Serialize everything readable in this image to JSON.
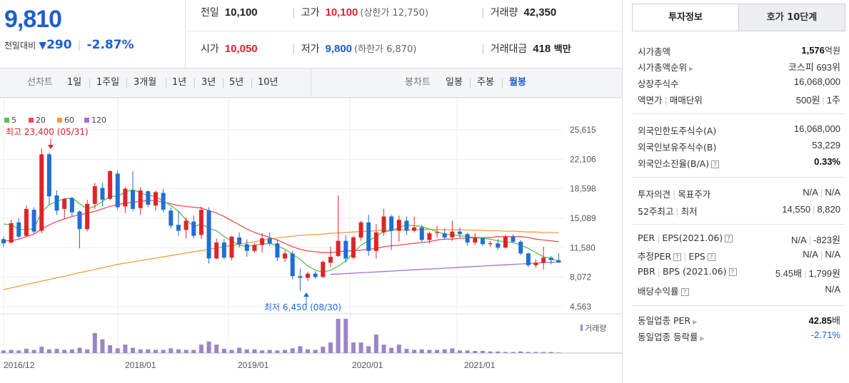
{
  "summary": {
    "current_price": "9,810",
    "change_label": "전일대비",
    "change_arrow": "▼",
    "change_value": "290",
    "change_rate": "-2.87%"
  },
  "quotes": {
    "prev_close": {
      "label": "전일",
      "value": "10,100"
    },
    "high": {
      "label": "고가",
      "value": "10,100",
      "sub": "(상한가 12,750)"
    },
    "volume": {
      "label": "거래량",
      "value": "42,350"
    },
    "open": {
      "label": "시가",
      "value": "10,050"
    },
    "low": {
      "label": "저가",
      "value": "9,800",
      "sub": "(하한가 6,870)"
    },
    "amount": {
      "label": "거래대금",
      "value": "418",
      "unit": "백만"
    }
  },
  "period_bar": {
    "line_label": "선차트",
    "line_options": [
      "1일",
      "1주일",
      "3개월",
      "1년",
      "3년",
      "5년",
      "10년"
    ],
    "candle_label": "봉차트",
    "candle_options": [
      "일봉",
      "주봉",
      "월봉"
    ],
    "candle_active": "월봉"
  },
  "chart_data": {
    "type": "candlestick",
    "interval": "monthly",
    "legend": [
      {
        "name": "5",
        "color": "#59c24b"
      },
      {
        "name": "20",
        "color": "#e94f52"
      },
      {
        "name": "60",
        "color": "#f59b3c"
      },
      {
        "name": "120",
        "color": "#a46fd6"
      }
    ],
    "y_ticks": [
      "25,615",
      "22,106",
      "18,598",
      "15,089",
      "11,580",
      "8,072",
      "4,563"
    ],
    "ylim": [
      4563,
      25615
    ],
    "x_ticks": [
      "2016/12",
      "2018/01",
      "2019/01",
      "2020/01",
      "2021/01"
    ],
    "high_annotation": "최고 23,400 (05/31)",
    "low_annotation": "최저 6,450 (08/30)",
    "volume_label": "거래량",
    "candles": [
      [
        12600,
        12900,
        11650,
        12100
      ],
      [
        12200,
        14900,
        12100,
        14500
      ],
      [
        14600,
        15100,
        12700,
        12900
      ],
      [
        13000,
        16600,
        12900,
        16200
      ],
      [
        16100,
        16400,
        13300,
        13500
      ],
      [
        13600,
        23400,
        13300,
        22700
      ],
      [
        22700,
        22900,
        16700,
        17700
      ],
      [
        17800,
        18400,
        15500,
        16000
      ],
      [
        16200,
        17500,
        15000,
        17400
      ],
      [
        17500,
        17600,
        15300,
        15800
      ],
      [
        15900,
        16000,
        11500,
        13800
      ],
      [
        13800,
        17300,
        13500,
        16800
      ],
      [
        16800,
        19300,
        16200,
        18900
      ],
      [
        18700,
        19300,
        16500,
        17300
      ],
      [
        17400,
        20800,
        17200,
        20700
      ],
      [
        20400,
        20800,
        16100,
        16400
      ],
      [
        16500,
        18800,
        15700,
        18600
      ],
      [
        18400,
        20700,
        15900,
        16200
      ],
      [
        16300,
        18800,
        15500,
        18400
      ],
      [
        18300,
        18400,
        16400,
        16700
      ],
      [
        16600,
        18400,
        16000,
        18200
      ],
      [
        18100,
        18600,
        15800,
        16100
      ],
      [
        16000,
        16400,
        13900,
        14200
      ],
      [
        14300,
        16000,
        13000,
        13600
      ],
      [
        13700,
        15200,
        12700,
        14800
      ],
      [
        14700,
        15400,
        12700,
        13000
      ],
      [
        13100,
        16500,
        12600,
        16100
      ],
      [
        16000,
        16400,
        9700,
        10300
      ],
      [
        10300,
        12700,
        10200,
        12200
      ],
      [
        12200,
        12600,
        10200,
        10400
      ],
      [
        10400,
        13000,
        10100,
        12900
      ],
      [
        12800,
        13400,
        11600,
        12000
      ],
      [
        12000,
        12600,
        10500,
        11200
      ],
      [
        11200,
        12100,
        11000,
        11900
      ],
      [
        11900,
        13300,
        11000,
        12700
      ],
      [
        12700,
        13400,
        11800,
        12100
      ],
      [
        12100,
        12500,
        10000,
        10400
      ],
      [
        10300,
        11300,
        9900,
        10900
      ],
      [
        10900,
        11200,
        7800,
        8200
      ],
      [
        8200,
        9100,
        6450,
        8000
      ],
      [
        8000,
        8700,
        7600,
        8500
      ],
      [
        8500,
        8800,
        7900,
        8100
      ],
      [
        8100,
        10100,
        8000,
        9900
      ],
      [
        9800,
        11700,
        9300,
        10500
      ],
      [
        10600,
        17800,
        10500,
        12400
      ],
      [
        12400,
        13100,
        9800,
        10300
      ],
      [
        10400,
        13000,
        10200,
        12800
      ],
      [
        12800,
        14800,
        12400,
        14600
      ],
      [
        14600,
        15500,
        10600,
        11200
      ],
      [
        11200,
        14400,
        10300,
        13400
      ],
      [
        13400,
        16200,
        13000,
        15300
      ],
      [
        15300,
        15500,
        11300,
        13600
      ],
      [
        13600,
        15400,
        12300,
        14900
      ],
      [
        14800,
        15300,
        13100,
        13600
      ],
      [
        13600,
        15300,
        13400,
        14000
      ],
      [
        14000,
        14300,
        12200,
        12500
      ],
      [
        12500,
        13500,
        12100,
        13300
      ],
      [
        13300,
        14200,
        12800,
        13400
      ],
      [
        13300,
        13900,
        12500,
        12800
      ],
      [
        12800,
        14800,
        12400,
        13500
      ],
      [
        13500,
        14000,
        12800,
        13200
      ],
      [
        13200,
        13400,
        11800,
        12200
      ],
      [
        12200,
        13300,
        11900,
        12800
      ],
      [
        12700,
        12800,
        11800,
        12000
      ],
      [
        12000,
        12400,
        11700,
        12100
      ],
      [
        12100,
        12600,
        11300,
        11600
      ],
      [
        11600,
        13100,
        11500,
        12900
      ],
      [
        12900,
        13200,
        12100,
        12300
      ],
      [
        12300,
        12500,
        10700,
        10900
      ],
      [
        10900,
        11000,
        9300,
        9500
      ],
      [
        9500,
        10200,
        9200,
        9800
      ],
      [
        9800,
        11700,
        9000,
        10400
      ],
      [
        10400,
        10600,
        9600,
        10100
      ],
      [
        10100,
        10900,
        9800,
        9810
      ]
    ],
    "ma5": [
      14400,
      14300,
      13800,
      13700,
      13900,
      15800,
      16700,
      17100,
      17400,
      17500,
      16800,
      16200,
      16500,
      17100,
      17700,
      17700,
      18200,
      18500,
      18100,
      17800,
      17700,
      17100,
      16600,
      15900,
      14900,
      14100,
      14400,
      13900,
      13600,
      12900,
      12400,
      11900,
      11700,
      11900,
      12000,
      12100,
      11800,
      11400,
      10800,
      10200,
      9400,
      8900,
      8700,
      8900,
      9400,
      10000,
      11000,
      11900,
      12400,
      12900,
      13500,
      13600,
      14000,
      14300,
      14200,
      14100,
      13800,
      13500,
      13200,
      13100,
      13000,
      12900,
      12800,
      12700,
      12600,
      12400,
      12300,
      12200,
      11900,
      11500,
      11000,
      10500,
      10300,
      10000
    ],
    "ma20": [
      12400,
      12400,
      12600,
      12900,
      13200,
      13800,
      14300,
      14700,
      15000,
      15300,
      15500,
      15700,
      15900,
      16200,
      16500,
      16700,
      16900,
      17000,
      17100,
      17200,
      17200,
      17000,
      16800,
      16600,
      16500,
      16400,
      16300,
      16000,
      15700,
      15300,
      14800,
      14300,
      13800,
      13400,
      13100,
      12800,
      12500,
      12100,
      11700,
      11400,
      11200,
      11100,
      11000,
      11000,
      11100,
      11200,
      11200,
      11300,
      11400,
      11500,
      11700,
      11800,
      11900,
      12000,
      12100,
      12200,
      12300,
      12500,
      12600,
      12600,
      12700,
      12700,
      12800,
      12800,
      12800,
      12900,
      12900,
      12900,
      12900,
      12800,
      12600,
      12500,
      12400,
      12300
    ],
    "ma60": [
      6600,
      6800,
      7000,
      7200,
      7400,
      7600,
      7800,
      8000,
      8200,
      8400,
      8600,
      8800,
      9000,
      9200,
      9400,
      9600,
      9750,
      9900,
      10050,
      10200,
      10350,
      10500,
      10650,
      10800,
      10950,
      11100,
      11250,
      11400,
      11550,
      11700,
      11850,
      12000,
      12150,
      12300,
      12450,
      12600,
      12750,
      12850,
      12950,
      13050,
      13100,
      13150,
      13200,
      13300,
      13350,
      13400,
      13450,
      13500,
      13550,
      13600,
      13650,
      13650,
      13700,
      13700,
      13700,
      13750,
      13750,
      13750,
      13700,
      13700,
      13700,
      13700,
      13650,
      13650,
      13600,
      13600,
      13550,
      13550,
      13500,
      13450,
      13450,
      13400,
      13400,
      13350
    ],
    "ma120_start_index": 43,
    "ma120": [
      8400,
      8450,
      8500,
      8550,
      8600,
      8650,
      8700,
      8750,
      8800,
      8850,
      8900,
      8950,
      9000,
      9050,
      9100,
      9150,
      9200,
      9250,
      9300,
      9350,
      9400,
      9450,
      9500,
      9550,
      9600,
      9650,
      9700,
      9750,
      9800,
      9850,
      9900
    ],
    "volumes": [
      0.5,
      0.6,
      0.5,
      0.8,
      0.6,
      1.2,
      0.7,
      0.8,
      0.6,
      0.7,
      1.0,
      0.7,
      3.8,
      2.6,
      1.5,
      0.9,
      1.6,
      1.0,
      0.7,
      0.7,
      0.6,
      0.6,
      0.9,
      0.7,
      0.6,
      0.6,
      1.6,
      2.2,
      1.6,
      0.8,
      0.6,
      1.0,
      0.7,
      0.7,
      0.5,
      0.6,
      0.5,
      0.6,
      0.9,
      1.3,
      0.7,
      0.6,
      1.2,
      2.0,
      6.5,
      6.5,
      2.0,
      2.0,
      1.3,
      3.5,
      1.6,
      1.0,
      1.6,
      0.8,
      0.6,
      0.7,
      0.6,
      0.6,
      0.7,
      0.9,
      0.5,
      0.5,
      0.4,
      0.4,
      0.3,
      0.3,
      0.2,
      0.2,
      0.3,
      0.2,
      0.2,
      0.2,
      0.2,
      0.1
    ]
  },
  "tabs": {
    "invest": "투자정보",
    "hoga": "호가 10단계"
  },
  "invest_info": {
    "market_cap": {
      "label": "시가총액",
      "value": "1,576",
      "unit": "억원"
    },
    "market_cap_rank": {
      "label": "시가총액순위",
      "value": "코스피 693위"
    },
    "shares": {
      "label": "상장주식수",
      "value": "16,068,000"
    },
    "par_label_1": "액면가",
    "par_label_2": "매매단위",
    "par_value": "500원",
    "par_unit": "1주",
    "foreign_limit": {
      "label": "외국인한도주식수(A)",
      "value": "16,068,000"
    },
    "foreign_hold": {
      "label": "외국인보유주식수(B)",
      "value": "53,229"
    },
    "foreign_ratio": {
      "label": "외국인소진율(B/A)",
      "value": "0.33%"
    },
    "opinion_label_1": "투자의견",
    "opinion_label_2": "목표주가",
    "opinion_value_1": "N/A",
    "opinion_value_2": "N/A",
    "wk52_label_1": "52주최고",
    "wk52_label_2": "최저",
    "wk52_high": "14,550",
    "wk52_low": "8,820",
    "per_label_1": "PER",
    "per_label_2": "EPS(2021.06)",
    "per_value": "N/A",
    "eps_value": "-823원",
    "est_label_1": "추정PER",
    "est_label_2": "EPS",
    "est_per": "N/A",
    "est_eps": "N/A",
    "pbr_label_1": "PBR",
    "pbr_label_2": "BPS (2021.06)",
    "pbr_value": "5.45배",
    "bps_value": "1,799원",
    "dividend": {
      "label": "배당수익률",
      "value": "N/A"
    },
    "industry_per": {
      "label": "동일업종 PER",
      "value": "42.85",
      "unit": "배"
    },
    "industry_rate": {
      "label": "동일업종 등락률",
      "value": "-2.71%"
    }
  },
  "colors": {
    "up": "#e0232a",
    "down": "#1f6fd6",
    "volume": "#9a86c6",
    "accent": "#1f5ecc"
  }
}
